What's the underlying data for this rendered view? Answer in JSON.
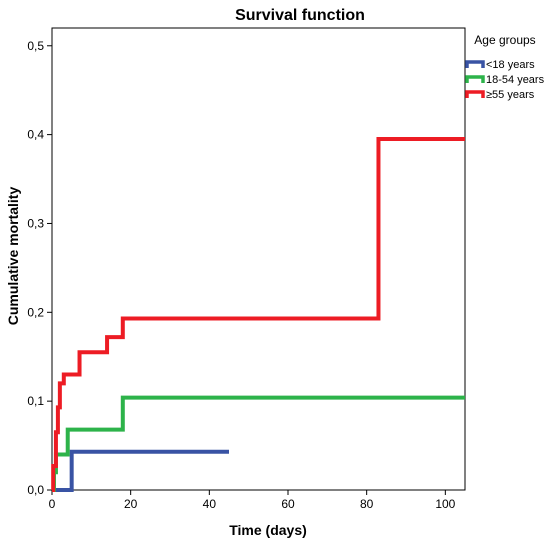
{
  "chart_data": {
    "type": "line",
    "step": true,
    "title": "Survival function",
    "xlabel": "Time (days)",
    "ylabel": "Cumulative mortality",
    "xlim": [
      0,
      105
    ],
    "ylim": [
      0,
      0.52
    ],
    "x_ticks": [
      0,
      20,
      40,
      60,
      80,
      100
    ],
    "x_tick_labels": [
      "0",
      "20",
      "40",
      "60",
      "80",
      "100"
    ],
    "y_ticks": [
      0,
      0.1,
      0.2,
      0.3,
      0.4,
      0.5
    ],
    "y_tick_labels": [
      "0,0",
      "0,1",
      "0,2",
      "0,3",
      "0,4",
      "0,5"
    ],
    "grid": false,
    "legend": {
      "title": "Age groups",
      "position": "right-top"
    },
    "series": [
      {
        "name": "<18 years",
        "color": "#3953a4",
        "x": [
          0,
          5,
          45
        ],
        "y": [
          0,
          0.043,
          0.043
        ]
      },
      {
        "name": "18-54 years",
        "color": "#2db34a",
        "x": [
          0,
          0.5,
          1,
          4,
          18,
          105
        ],
        "y": [
          0,
          0.02,
          0.04,
          0.068,
          0.104,
          0.104
        ]
      },
      {
        "name": "≥55 years",
        "color": "#ed1c24",
        "x": [
          0,
          0.3,
          1,
          1.5,
          2,
          3,
          7,
          14,
          18,
          83,
          105
        ],
        "y": [
          0,
          0.027,
          0.065,
          0.093,
          0.12,
          0.13,
          0.155,
          0.172,
          0.193,
          0.395,
          0.395
        ]
      }
    ]
  }
}
